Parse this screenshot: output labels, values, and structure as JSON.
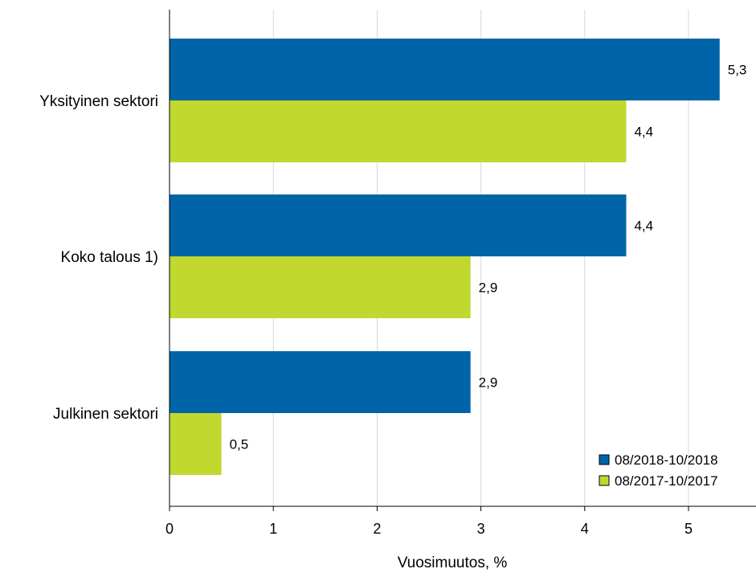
{
  "chart_data": {
    "type": "bar",
    "orientation": "horizontal",
    "categories": [
      "Yksityinen sektori",
      "Koko talous 1)",
      "Julkinen sektori"
    ],
    "series": [
      {
        "name": "08/2018-10/2018",
        "values": [
          5.3,
          4.4,
          2.9
        ],
        "labels": [
          "5,3",
          "4,4",
          "2,9"
        ],
        "color": "#0064A8"
      },
      {
        "name": "08/2017-10/2017",
        "values": [
          4.4,
          2.9,
          0.5
        ],
        "labels": [
          "4,4",
          "2,9",
          "0,5"
        ],
        "color": "#C1D82F"
      }
    ],
    "xlabel": "Vuosimuutos, %",
    "xlim": [
      0,
      5.6
    ],
    "xticks": [
      "0",
      "1",
      "2",
      "3",
      "4",
      "5"
    ],
    "grid": true,
    "legend_position": "bottom-right"
  }
}
